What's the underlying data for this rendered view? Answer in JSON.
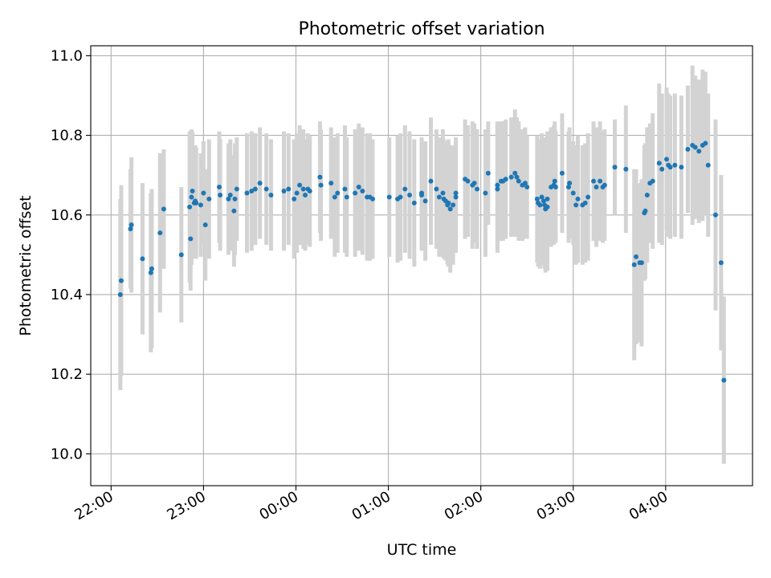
{
  "chart_data": {
    "type": "scatter",
    "title": "Photometric offset variation",
    "xlabel": "UTC time",
    "ylabel": "Photometric offset",
    "grid": true,
    "xlim_hours": [
      21.78,
      28.94
    ],
    "ylim": [
      9.92,
      11.025
    ],
    "x_ticks": [
      {
        "label": "22:00",
        "hours": 22
      },
      {
        "label": "23:00",
        "hours": 23
      },
      {
        "label": "00:00",
        "hours": 24
      },
      {
        "label": "01:00",
        "hours": 25
      },
      {
        "label": "02:00",
        "hours": 26
      },
      {
        "label": "03:00",
        "hours": 27
      },
      {
        "label": "04:00",
        "hours": 28
      }
    ],
    "y_ticks": [
      {
        "label": "10.0",
        "value": 10.0
      },
      {
        "label": "10.2",
        "value": 10.2
      },
      {
        "label": "10.4",
        "value": 10.4
      },
      {
        "label": "10.6",
        "value": 10.6
      },
      {
        "label": "10.8",
        "value": 10.8
      },
      {
        "label": "11.0",
        "value": 11.0
      }
    ],
    "point_color": "#1f77b4",
    "errorbar_color": "#d3d3d3",
    "series": [
      {
        "name": "offset",
        "x_hours": [
          22.1,
          22.11,
          22.21,
          22.22,
          22.34,
          22.43,
          22.44,
          22.53,
          22.57,
          22.76,
          22.85,
          22.86,
          22.87,
          22.88,
          22.9,
          22.91,
          22.92,
          22.97,
          23.0,
          23.02,
          23.06,
          23.17,
          23.18,
          23.27,
          23.29,
          23.33,
          23.34,
          23.36,
          23.47,
          23.52,
          23.56,
          23.61,
          23.68,
          23.73,
          23.87,
          23.92,
          23.98,
          24.01,
          24.04,
          24.08,
          24.1,
          24.13,
          24.15,
          24.26,
          24.27,
          24.38,
          24.42,
          24.45,
          24.53,
          24.55,
          24.64,
          24.68,
          24.72,
          24.77,
          24.8,
          24.83,
          25.01,
          25.1,
          25.13,
          25.18,
          25.23,
          25.28,
          25.36,
          25.36,
          25.4,
          25.46,
          25.52,
          25.55,
          25.59,
          25.6,
          25.62,
          25.64,
          25.65,
          25.67,
          25.7,
          25.73,
          25.73,
          25.83,
          25.86,
          25.91,
          25.93,
          25.96,
          26.05,
          26.08,
          26.18,
          26.18,
          26.22,
          26.24,
          26.27,
          26.33,
          26.37,
          26.39,
          26.41,
          26.45,
          26.48,
          26.5,
          26.61,
          26.62,
          26.64,
          26.66,
          26.68,
          26.69,
          26.7,
          26.72,
          26.72,
          26.76,
          26.79,
          26.8,
          26.81,
          26.88,
          26.95,
          26.96,
          27.0,
          27.03,
          27.05,
          27.1,
          27.13,
          27.16,
          27.22,
          27.25,
          27.29,
          27.32,
          27.34,
          27.45,
          27.57,
          27.66,
          27.68,
          27.72,
          27.74,
          27.77,
          27.78,
          27.8,
          27.83,
          27.86,
          27.93,
          27.96,
          28.01,
          28.03,
          28.05,
          28.1,
          28.17,
          28.24,
          28.29,
          28.32,
          28.36,
          28.4,
          28.43,
          28.46,
          28.54,
          28.6,
          28.63
        ],
        "y": [
          10.4,
          10.435,
          10.565,
          10.575,
          10.49,
          10.455,
          10.465,
          10.555,
          10.615,
          10.5,
          10.62,
          10.54,
          10.645,
          10.66,
          10.63,
          10.635,
          10.63,
          10.625,
          10.655,
          10.575,
          10.64,
          10.67,
          10.65,
          10.64,
          10.65,
          10.61,
          10.64,
          10.665,
          10.655,
          10.66,
          10.665,
          10.68,
          10.665,
          10.65,
          10.66,
          10.665,
          10.64,
          10.655,
          10.675,
          10.665,
          10.65,
          10.665,
          10.66,
          10.695,
          10.675,
          10.68,
          10.645,
          10.655,
          10.665,
          10.645,
          10.655,
          10.67,
          10.66,
          10.645,
          10.645,
          10.64,
          10.645,
          10.64,
          10.645,
          10.665,
          10.65,
          10.63,
          10.65,
          10.655,
          10.635,
          10.685,
          10.665,
          10.645,
          10.655,
          10.64,
          10.635,
          10.625,
          10.63,
          10.615,
          10.625,
          10.645,
          10.655,
          10.69,
          10.685,
          10.675,
          10.68,
          10.665,
          10.655,
          10.705,
          10.665,
          10.675,
          10.685,
          10.685,
          10.69,
          10.695,
          10.705,
          10.695,
          10.685,
          10.675,
          10.68,
          10.67,
          10.64,
          10.63,
          10.625,
          10.645,
          10.635,
          10.625,
          10.615,
          10.62,
          10.64,
          10.67,
          10.675,
          10.685,
          10.67,
          10.705,
          10.67,
          10.68,
          10.655,
          10.625,
          10.64,
          10.625,
          10.63,
          10.645,
          10.685,
          10.67,
          10.685,
          10.67,
          10.675,
          10.72,
          10.715,
          10.475,
          10.495,
          10.48,
          10.48,
          10.605,
          10.61,
          10.65,
          10.68,
          10.685,
          10.73,
          10.715,
          10.74,
          10.725,
          10.72,
          10.725,
          10.72,
          10.765,
          10.775,
          10.77,
          10.76,
          10.775,
          10.78,
          10.725,
          10.6,
          10.48,
          10.185
        ],
        "err": [
          0.24,
          0.24,
          0.15,
          0.17,
          0.19,
          0.2,
          0.2,
          0.2,
          0.15,
          0.17,
          0.19,
          0.13,
          0.17,
          0.15,
          0.14,
          0.14,
          0.14,
          0.13,
          0.13,
          0.14,
          0.15,
          0.14,
          0.14,
          0.14,
          0.14,
          0.14,
          0.14,
          0.13,
          0.15,
          0.15,
          0.14,
          0.14,
          0.14,
          0.14,
          0.15,
          0.14,
          0.15,
          0.15,
          0.15,
          0.15,
          0.14,
          0.14,
          0.14,
          0.14,
          0.14,
          0.14,
          0.15,
          0.15,
          0.16,
          0.15,
          0.16,
          0.16,
          0.16,
          0.16,
          0.16,
          0.15,
          0.15,
          0.16,
          0.16,
          0.16,
          0.16,
          0.16,
          0.14,
          0.14,
          0.15,
          0.16,
          0.15,
          0.15,
          0.16,
          0.15,
          0.15,
          0.15,
          0.16,
          0.16,
          0.15,
          0.14,
          0.14,
          0.15,
          0.14,
          0.16,
          0.15,
          0.15,
          0.16,
          0.13,
          0.16,
          0.16,
          0.15,
          0.15,
          0.15,
          0.15,
          0.16,
          0.15,
          0.15,
          0.14,
          0.14,
          0.13,
          0.16,
          0.16,
          0.16,
          0.16,
          0.16,
          0.16,
          0.16,
          0.16,
          0.17,
          0.15,
          0.15,
          0.15,
          0.14,
          0.15,
          0.14,
          0.14,
          0.13,
          0.15,
          0.16,
          0.15,
          0.15,
          0.16,
          0.15,
          0.15,
          0.15,
          0.14,
          0.14,
          0.12,
          0.16,
          0.24,
          0.22,
          0.2,
          0.21,
          0.17,
          0.17,
          0.17,
          0.15,
          0.17,
          0.2,
          0.19,
          0.18,
          0.18,
          0.18,
          0.18,
          0.18,
          0.16,
          0.2,
          0.18,
          0.18,
          0.19,
          0.18,
          0.18,
          0.24,
          0.22,
          0.21
        ]
      }
    ]
  }
}
